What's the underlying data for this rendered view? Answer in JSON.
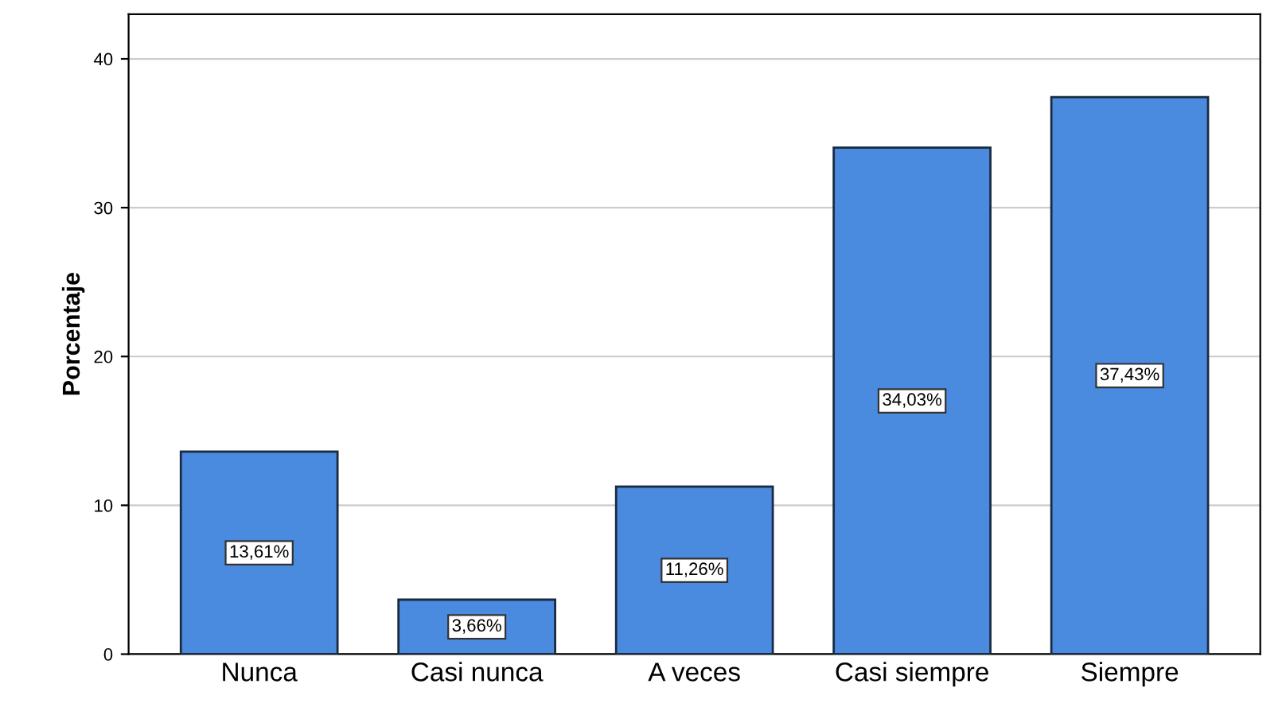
{
  "chart_data": {
    "type": "bar",
    "ylabel": "Porcentaje",
    "categories": [
      "Nunca",
      "Casi nunca",
      "A veces",
      "Casi siempre",
      "Siempre"
    ],
    "values": [
      13.61,
      3.66,
      11.26,
      34.03,
      37.43
    ],
    "value_labels": [
      "13,61%",
      "3,66%",
      "11,26%",
      "34,03%",
      "37,43%"
    ],
    "color": "#4a8be0",
    "ylim": [
      0,
      43
    ],
    "yticks": [
      0,
      10,
      20,
      30,
      40
    ],
    "grid": "y"
  }
}
